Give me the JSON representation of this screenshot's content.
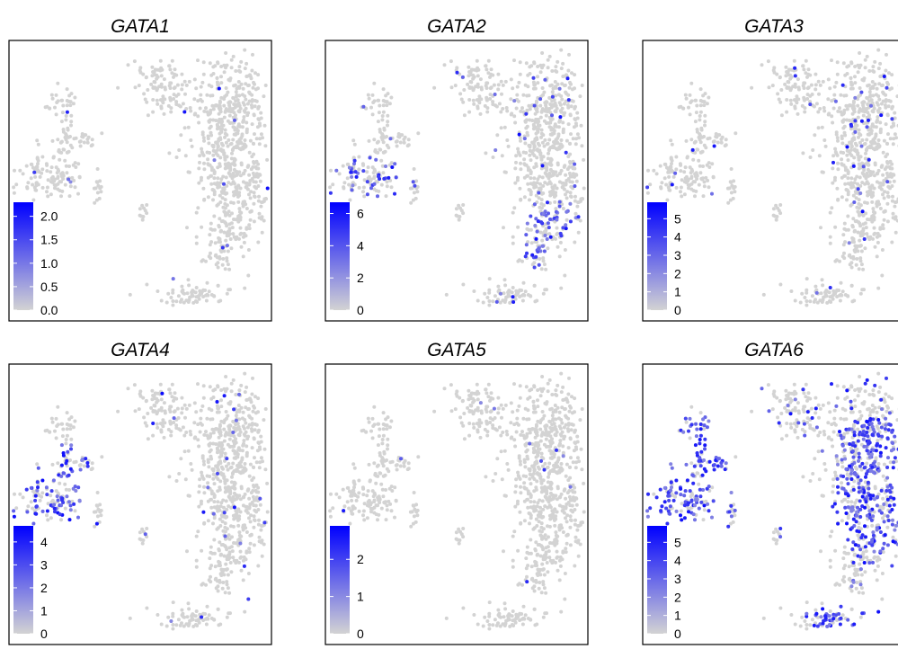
{
  "figure": {
    "type": "umap-feature-plot-grid",
    "colors": {
      "low": "#d3d3d3",
      "high": "#0000ff",
      "frame": "#000000"
    }
  },
  "chart_data": [
    {
      "type": "scatter",
      "title": "GATA1",
      "legend_ticks": [
        "0.0",
        "0.5",
        "1.0",
        "1.5",
        "2.0"
      ],
      "scale_max": 2.3,
      "legend_position": "bottom-left",
      "expression": "very-sparse"
    },
    {
      "type": "scatter",
      "title": "GATA2",
      "legend_ticks": [
        "0",
        "2",
        "4",
        "6"
      ],
      "scale_max": 6.7,
      "legend_position": "bottom-left",
      "expression": "moderate"
    },
    {
      "type": "scatter",
      "title": "GATA3",
      "legend_ticks": [
        "0",
        "1",
        "2",
        "3",
        "4",
        "5"
      ],
      "scale_max": 5.9,
      "legend_position": "bottom-left",
      "expression": "sparse"
    },
    {
      "type": "scatter",
      "title": "GATA4",
      "legend_ticks": [
        "0",
        "1",
        "2",
        "3",
        "4"
      ],
      "scale_max": 4.7,
      "legend_position": "bottom-left",
      "expression": "left-cluster"
    },
    {
      "type": "scatter",
      "title": "GATA5",
      "legend_ticks": [
        "0",
        "1",
        "2"
      ],
      "scale_max": 2.9,
      "legend_position": "bottom-left",
      "expression": "very-sparse"
    },
    {
      "type": "scatter",
      "title": "GATA6",
      "legend_ticks": [
        "0",
        "1",
        "2",
        "3",
        "4",
        "5"
      ],
      "scale_max": 5.9,
      "legend_position": "bottom-left",
      "expression": "broad"
    }
  ]
}
